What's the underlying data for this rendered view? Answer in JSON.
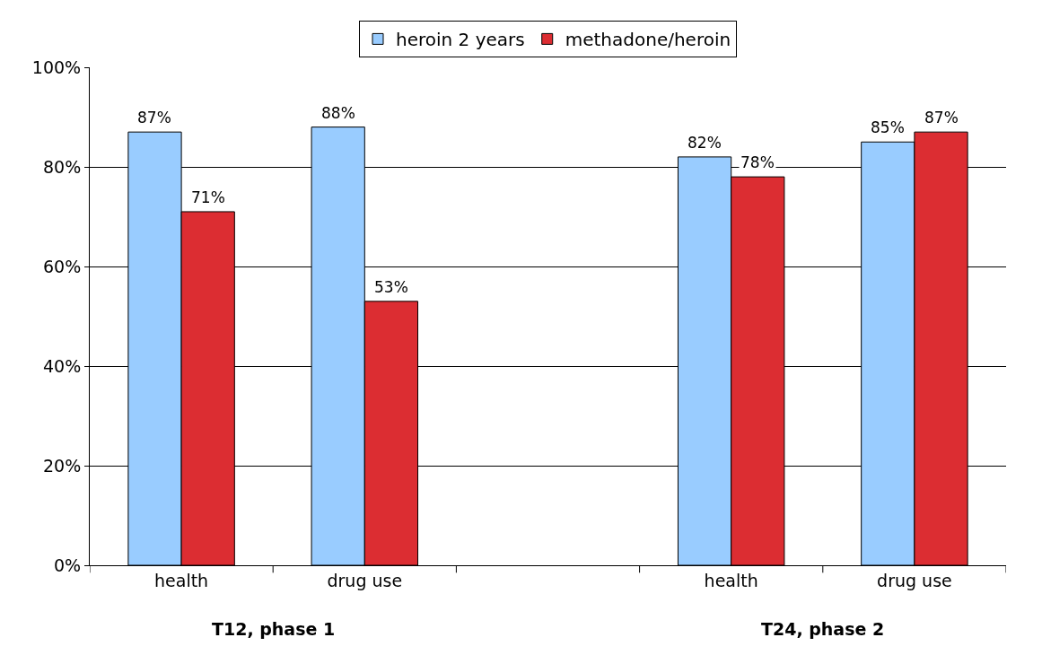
{
  "chart_data": {
    "type": "bar",
    "categories": [
      "health",
      "drug use",
      null,
      "health",
      "drug use"
    ],
    "series": [
      {
        "name": "heroin 2 years",
        "color": "#99ccff",
        "values": [
          87,
          88,
          null,
          82,
          85
        ],
        "value_labels": [
          "87%",
          "88%",
          null,
          "82%",
          "85%"
        ]
      },
      {
        "name": "methadone/heroin",
        "color": "#dc2d32",
        "values": [
          71,
          53,
          null,
          78,
          87
        ],
        "value_labels": [
          "71%",
          "53%",
          null,
          "78%",
          "87%"
        ]
      }
    ],
    "ylim": [
      0,
      100
    ],
    "yticks": [
      {
        "value": 0,
        "label": "0%"
      },
      {
        "value": 20,
        "label": "20%"
      },
      {
        "value": 40,
        "label": "40%"
      },
      {
        "value": 60,
        "label": "60%"
      },
      {
        "value": 80,
        "label": "80%"
      },
      {
        "value": 100,
        "label": "100%"
      }
    ],
    "grid": "y",
    "legend": "top",
    "annotations": [
      "T12, phase 1",
      "T24, phase 2"
    ]
  }
}
